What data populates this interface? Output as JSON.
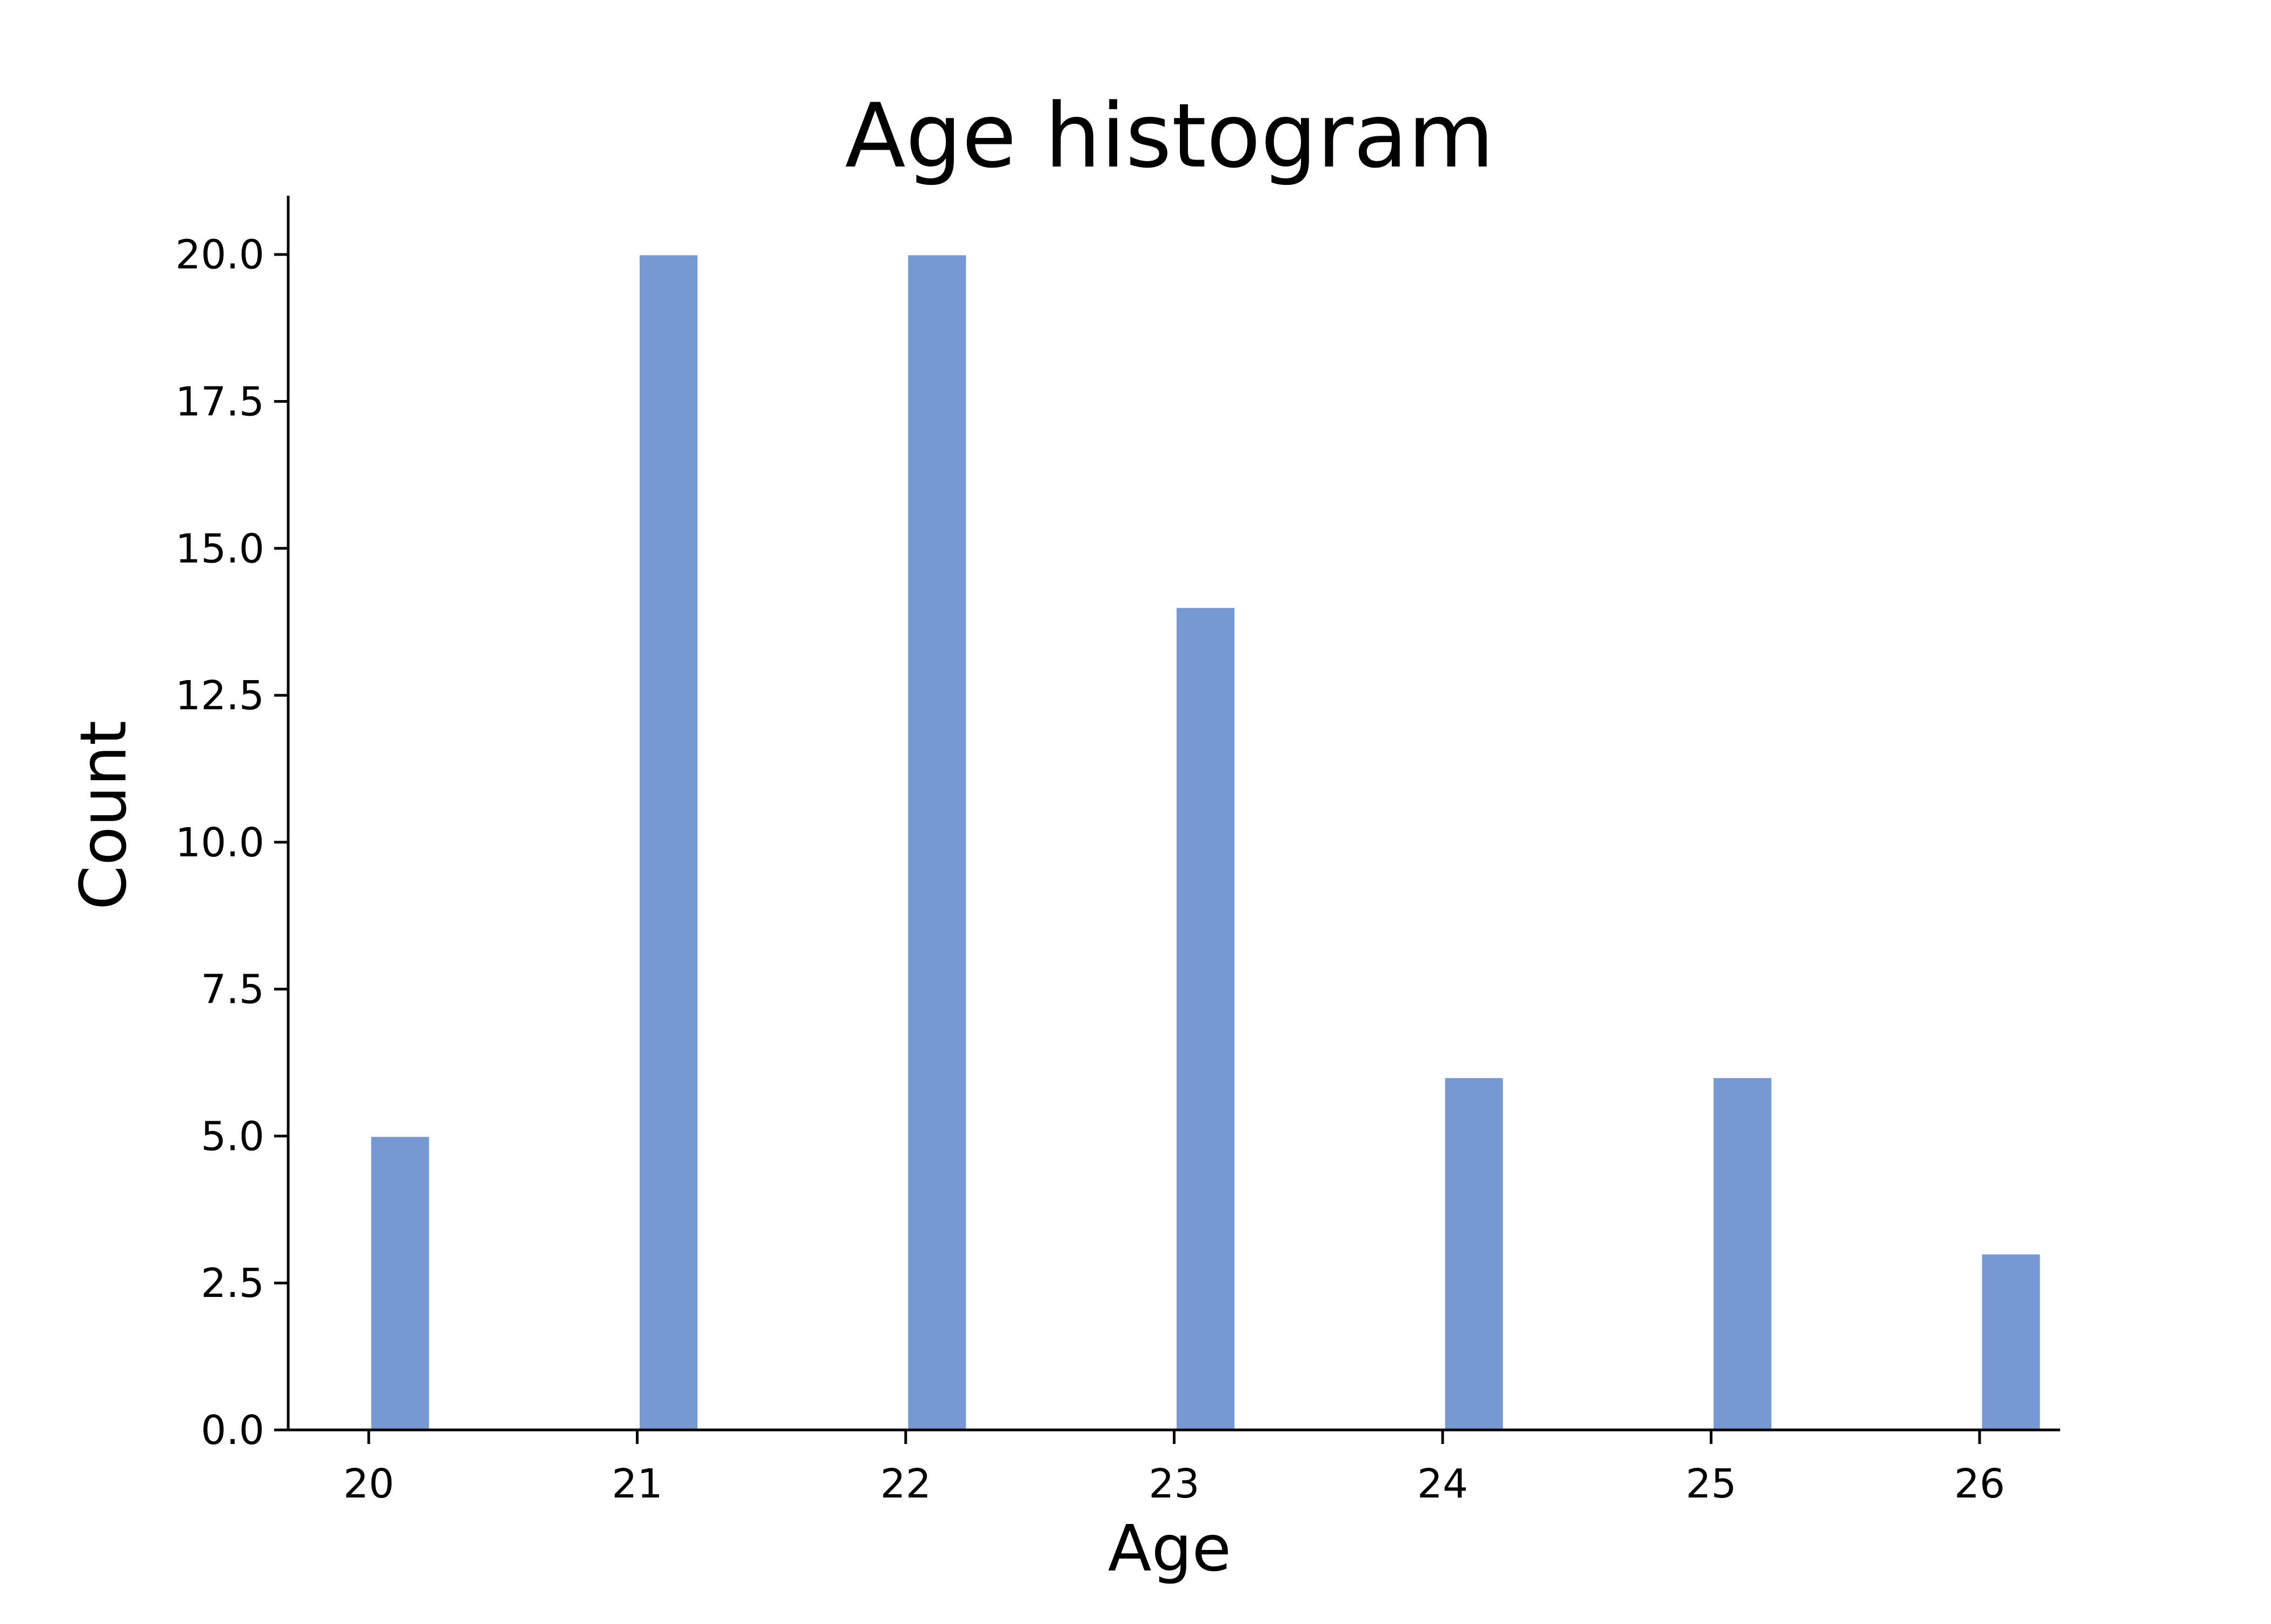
{
  "chart_data": {
    "type": "bar",
    "title": "Age histogram",
    "xlabel": "Age",
    "ylabel": "Count",
    "categories": [
      20,
      21,
      22,
      23,
      24,
      25,
      26
    ],
    "values": [
      5,
      20,
      20,
      14,
      6,
      6,
      3
    ],
    "xlim": [
      19.7,
      26.3
    ],
    "ylim": [
      0,
      21
    ],
    "x_ticks": [
      "20",
      "21",
      "22",
      "23",
      "24",
      "25",
      "26"
    ],
    "y_ticks": [
      "0.0",
      "2.5",
      "5.0",
      "7.5",
      "10.0",
      "12.5",
      "15.0",
      "17.5",
      "20.0"
    ],
    "grid": false,
    "bar_color": "#7799d3"
  }
}
